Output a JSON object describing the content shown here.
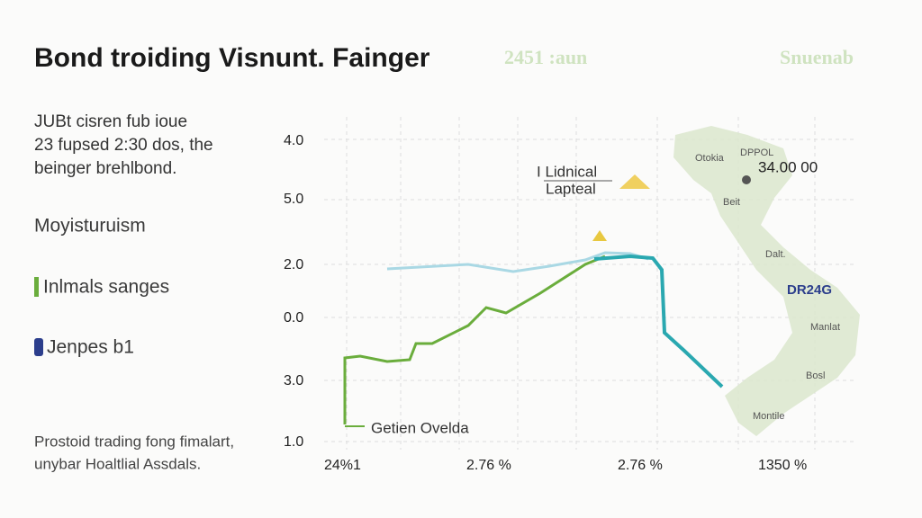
{
  "header": {
    "title": "Bond troiding Visnunt. Fainger",
    "tag": "2451 :aun",
    "brand": "Snuenab"
  },
  "intro": [
    "JUBt cisren fub ioue",
    "23 fupsed 2:30 dos, the",
    "beinger brehlbond."
  ],
  "legend": [
    "Moyisturuism",
    "Inlmals sanges",
    "Jenpes b1"
  ],
  "footer": [
    "Prostoid trading fong fimalart,",
    "unybar Hoaltlial Assdals."
  ],
  "axis": {
    "y_labels": [
      "4.0",
      "5.0",
      "2.0",
      "0.0",
      "3.0",
      "1.0"
    ],
    "x_labels": [
      "24%1",
      "2.76 %",
      "2.76 %",
      "1350 %"
    ]
  },
  "annotations": {
    "box": [
      "I Lidnical",
      "Lapteal"
    ],
    "line_label": "Getien Ovelda"
  },
  "map": {
    "labels": [
      "Otokia",
      "DPPOL",
      "34.00 00",
      "Beit",
      "Dalt.",
      "DR24G",
      "Manlat",
      "Bosl",
      "Montile"
    ]
  }
}
